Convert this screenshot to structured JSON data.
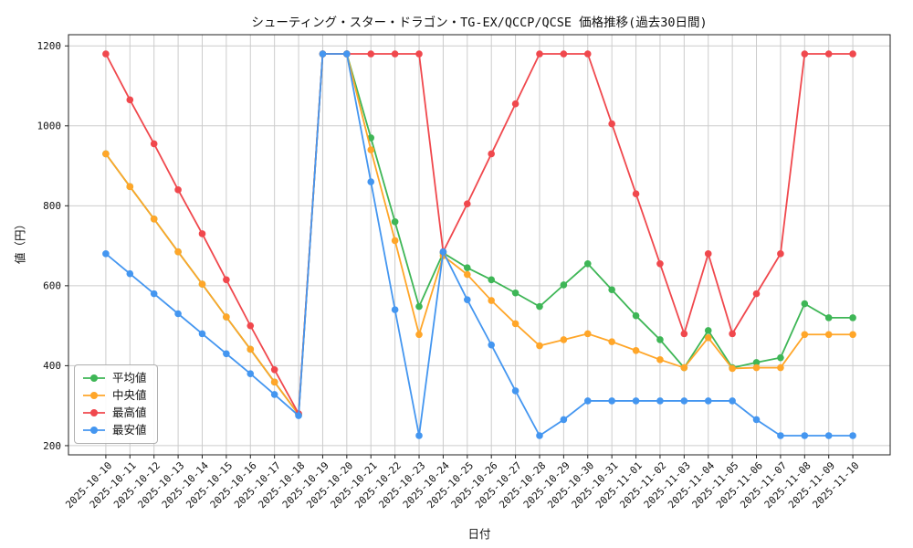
{
  "chart_data": {
    "type": "line",
    "title": "シューティング・スター・ドラゴン・TG-EX/QCCP/QCSE 価格推移(過去30日間)",
    "xlabel": "日付",
    "ylabel": "値（円）",
    "grid": true,
    "legend_position": "lower-left",
    "ylim": [
      177,
      1228
    ],
    "yticks": [
      200,
      400,
      600,
      800,
      1000,
      1200
    ],
    "x": [
      "2025-10-10",
      "2025-10-11",
      "2025-10-12",
      "2025-10-13",
      "2025-10-14",
      "2025-10-15",
      "2025-10-16",
      "2025-10-17",
      "2025-10-18",
      "2025-10-19",
      "2025-10-20",
      "2025-10-21",
      "2025-10-22",
      "2025-10-23",
      "2025-10-24",
      "2025-10-25",
      "2025-10-26",
      "2025-10-27",
      "2025-10-28",
      "2025-10-29",
      "2025-10-30",
      "2025-10-31",
      "2025-11-01",
      "2025-11-02",
      "2025-11-03",
      "2025-11-04",
      "2025-11-05",
      "2025-11-06",
      "2025-11-07",
      "2025-11-08",
      "2025-11-09",
      "2025-11-10"
    ],
    "series": [
      {
        "name": "平均値",
        "color": "#3eb656",
        "values": [
          930,
          848,
          767,
          685,
          604,
          522,
          441,
          359,
          278,
          1180,
          1180,
          970,
          760,
          548,
          682,
          645,
          615,
          582,
          548,
          602,
          655,
          590,
          525,
          465,
          395,
          488,
          395,
          408,
          420,
          555,
          520,
          520
        ]
      },
      {
        "name": "中央値",
        "color": "#ffa629",
        "values": [
          930,
          848,
          767,
          685,
          604,
          522,
          441,
          359,
          278,
          1180,
          1180,
          940,
          713,
          478,
          675,
          628,
          563,
          505,
          450,
          465,
          480,
          460,
          438,
          415,
          395,
          470,
          393,
          395,
          395,
          478,
          478,
          478
        ]
      },
      {
        "name": "最高値",
        "color": "#f0484d",
        "values": [
          1180,
          1065,
          955,
          840,
          730,
          615,
          500,
          390,
          280,
          1180,
          1180,
          1180,
          1180,
          1180,
          685,
          805,
          930,
          1055,
          1180,
          1180,
          1180,
          1005,
          830,
          655,
          480,
          680,
          480,
          580,
          680,
          1180,
          1180,
          1180
        ]
      },
      {
        "name": "最安値",
        "color": "#4496f0",
        "values": [
          680,
          630,
          580,
          530,
          480,
          430,
          380,
          328,
          275,
          1180,
          1180,
          860,
          540,
          225,
          685,
          565,
          452,
          337,
          225,
          265,
          312,
          312,
          312,
          312,
          312,
          312,
          312,
          265,
          225,
          225,
          225,
          225
        ]
      }
    ],
    "style": {
      "grid_color": "#cccccc",
      "spine_color": "#222222",
      "tick_label_color": "#111111"
    }
  }
}
